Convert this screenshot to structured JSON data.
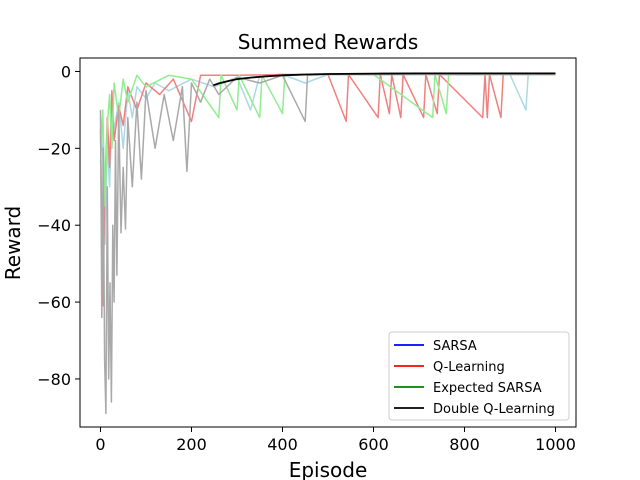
{
  "chart_data": {
    "type": "line",
    "title": "Summed Rewards",
    "xlabel": "Episode",
    "ylabel": "Reward",
    "xlim": [
      -45,
      1045
    ],
    "ylim": [
      -92.5,
      3.5
    ],
    "x_ticks": [
      0,
      200,
      400,
      600,
      800,
      1000
    ],
    "y_ticks": [
      0,
      -20,
      -40,
      -60,
      -80
    ],
    "x_tick_labels": [
      "0",
      "200",
      "400",
      "600",
      "800",
      "1000"
    ],
    "y_tick_labels": [
      "0",
      "−20",
      "−40",
      "−60",
      "−80"
    ],
    "grid": false,
    "legend_position": "lower-right",
    "legend": [
      {
        "name": "SARSA",
        "color": "#0000ff"
      },
      {
        "name": "Q-Learning",
        "color": "#ff0000"
      },
      {
        "name": "Expected SARSA",
        "color": "#008000"
      },
      {
        "name": "Double Q-Learning",
        "color": "#000000"
      }
    ],
    "series": [
      {
        "name": "SARSA",
        "color": "#add8e6",
        "points": [
          [
            0,
            -12
          ],
          [
            5,
            -22
          ],
          [
            10,
            -45
          ],
          [
            15,
            -18
          ],
          [
            20,
            -30
          ],
          [
            25,
            -10
          ],
          [
            30,
            -15
          ],
          [
            40,
            -8
          ],
          [
            50,
            -20
          ],
          [
            60,
            -5
          ],
          [
            70,
            -12
          ],
          [
            80,
            -4
          ],
          [
            100,
            -7
          ],
          [
            120,
            -3
          ],
          [
            150,
            -5
          ],
          [
            200,
            -2
          ],
          [
            250,
            -4
          ],
          [
            300,
            -1.5
          ],
          [
            330,
            -10
          ],
          [
            350,
            -1
          ],
          [
            400,
            -0.8
          ],
          [
            450,
            -3
          ],
          [
            500,
            -0.8
          ],
          [
            600,
            -0.9
          ],
          [
            700,
            -0.8
          ],
          [
            800,
            -0.9
          ],
          [
            900,
            -0.8
          ],
          [
            935,
            -10
          ],
          [
            940,
            -0.8
          ],
          [
            1000,
            -0.8
          ]
        ]
      },
      {
        "name": "Q-Learning",
        "color": "#f08080",
        "points": [
          [
            0,
            -15
          ],
          [
            5,
            -61
          ],
          [
            10,
            -30
          ],
          [
            15,
            -12
          ],
          [
            20,
            -25
          ],
          [
            25,
            -5
          ],
          [
            30,
            -18
          ],
          [
            40,
            -9
          ],
          [
            50,
            -14
          ],
          [
            60,
            -4
          ],
          [
            80,
            -10
          ],
          [
            100,
            -3
          ],
          [
            130,
            -6
          ],
          [
            160,
            -2
          ],
          [
            200,
            -13
          ],
          [
            220,
            -1
          ],
          [
            300,
            -1
          ],
          [
            400,
            -0.8
          ],
          [
            500,
            -0.8
          ],
          [
            540,
            -13
          ],
          [
            545,
            -0.8
          ],
          [
            610,
            -12
          ],
          [
            615,
            -0.8
          ],
          [
            635,
            -11
          ],
          [
            640,
            -0.8
          ],
          [
            660,
            -12
          ],
          [
            665,
            -0.8
          ],
          [
            710,
            -12
          ],
          [
            715,
            -0.8
          ],
          [
            740,
            -11
          ],
          [
            745,
            -0.8
          ],
          [
            840,
            -12
          ],
          [
            845,
            -0.8
          ],
          [
            850,
            -12
          ],
          [
            855,
            -0.8
          ],
          [
            880,
            -12
          ],
          [
            885,
            -0.8
          ],
          [
            1000,
            -0.8
          ]
        ]
      },
      {
        "name": "Expected SARSA",
        "color": "#90ee90",
        "points": [
          [
            0,
            -24
          ],
          [
            5,
            -10
          ],
          [
            10,
            -35
          ],
          [
            15,
            -14
          ],
          [
            20,
            -6
          ],
          [
            25,
            -20
          ],
          [
            30,
            -3
          ],
          [
            40,
            -12
          ],
          [
            50,
            -2
          ],
          [
            60,
            -8
          ],
          [
            80,
            -1
          ],
          [
            100,
            -4
          ],
          [
            150,
            -1
          ],
          [
            200,
            -2
          ],
          [
            260,
            -12
          ],
          [
            265,
            -1
          ],
          [
            300,
            -10
          ],
          [
            305,
            -1
          ],
          [
            350,
            -12
          ],
          [
            355,
            -1
          ],
          [
            400,
            -11
          ],
          [
            405,
            -1
          ],
          [
            500,
            -0.8
          ],
          [
            600,
            -0.8
          ],
          [
            730,
            -12
          ],
          [
            735,
            -0.8
          ],
          [
            760,
            -11
          ],
          [
            765,
            -0.8
          ],
          [
            1000,
            -0.8
          ]
        ]
      },
      {
        "name": "Double Q-Learning",
        "color": "#a9a9a9",
        "points": [
          [
            0,
            -10
          ],
          [
            3,
            -64
          ],
          [
            6,
            -20
          ],
          [
            9,
            -75
          ],
          [
            12,
            -89
          ],
          [
            15,
            -30
          ],
          [
            18,
            -80
          ],
          [
            21,
            -55
          ],
          [
            24,
            -86
          ],
          [
            27,
            -40
          ],
          [
            30,
            -60
          ],
          [
            33,
            -18
          ],
          [
            36,
            -53
          ],
          [
            40,
            -10
          ],
          [
            45,
            -42
          ],
          [
            50,
            -25
          ],
          [
            55,
            -41
          ],
          [
            60,
            -12
          ],
          [
            70,
            -30
          ],
          [
            80,
            -8
          ],
          [
            90,
            -28
          ],
          [
            100,
            -5
          ],
          [
            120,
            -20
          ],
          [
            140,
            -6
          ],
          [
            160,
            -18
          ],
          [
            180,
            -4
          ],
          [
            190,
            -26
          ],
          [
            200,
            -3
          ],
          [
            220,
            -8
          ],
          [
            240,
            -2
          ],
          [
            260,
            -6
          ],
          [
            300,
            -1.5
          ],
          [
            350,
            -3
          ],
          [
            400,
            -1
          ],
          [
            450,
            -13
          ],
          [
            455,
            -1
          ],
          [
            500,
            -0.8
          ],
          [
            1000,
            -0.8
          ]
        ]
      },
      {
        "name": "Double Q-Learning (smoothed)",
        "color": "#000000",
        "points": [
          [
            248,
            -3.6
          ],
          [
            260,
            -3.1
          ],
          [
            280,
            -2.5
          ],
          [
            300,
            -2.0
          ],
          [
            330,
            -1.6
          ],
          [
            360,
            -1.3
          ],
          [
            400,
            -1.0
          ],
          [
            450,
            -0.8
          ],
          [
            500,
            -0.65
          ],
          [
            600,
            -0.55
          ],
          [
            700,
            -0.5
          ],
          [
            800,
            -0.5
          ],
          [
            900,
            -0.5
          ],
          [
            1000,
            -0.5
          ]
        ]
      }
    ]
  }
}
